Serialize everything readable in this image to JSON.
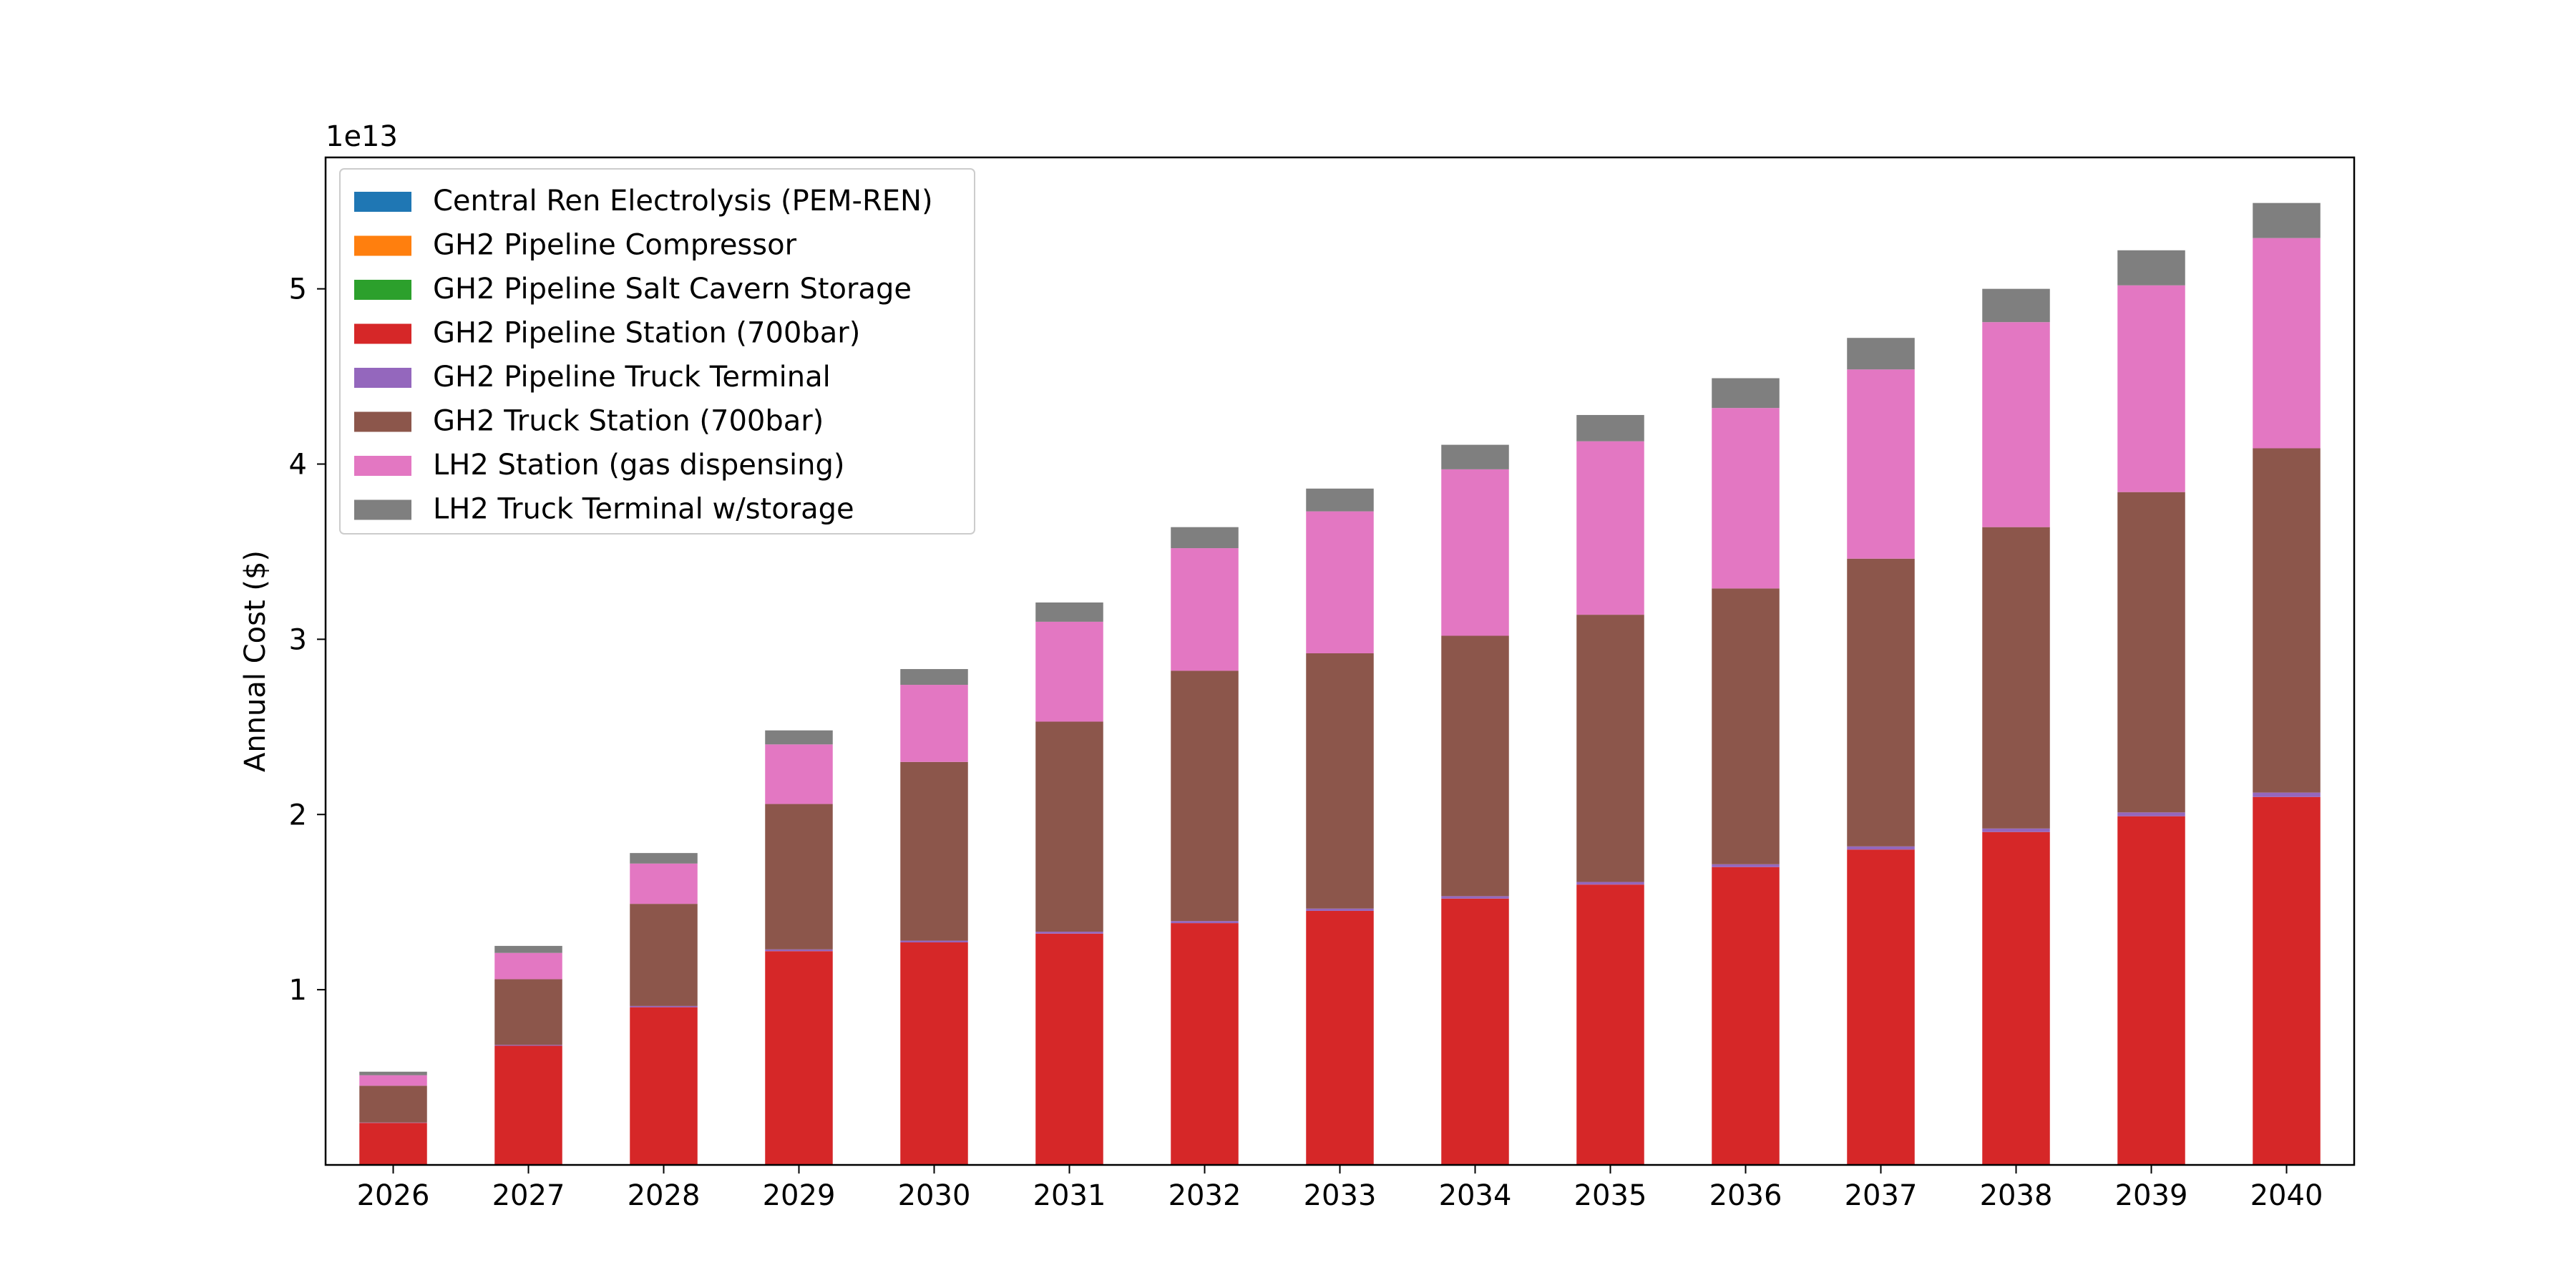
{
  "chart_data": {
    "type": "bar",
    "stacked": true,
    "categories": [
      "2026",
      "2027",
      "2028",
      "2029",
      "2030",
      "2031",
      "2032",
      "2033",
      "2034",
      "2035",
      "2036",
      "2037",
      "2038",
      "2039",
      "2040"
    ],
    "ylabel": "Annual Cost ($)",
    "xlabel": "",
    "y_scale_label": "1e13",
    "ylim": [
      0,
      5.75
    ],
    "yticks": [
      1,
      2,
      3,
      4,
      5
    ],
    "grid": false,
    "legend_position": "upper-left",
    "series": [
      {
        "name": "Central Ren Electrolysis (PEM-REN)",
        "color": "#1f77b4",
        "values": [
          0,
          0,
          0,
          0,
          0,
          0,
          0,
          0,
          0,
          0,
          0,
          0,
          0,
          0,
          0
        ]
      },
      {
        "name": "GH2 Pipeline Compressor",
        "color": "#ff7f0e",
        "values": [
          0,
          0,
          0,
          0,
          0,
          0,
          0,
          0,
          0,
          0,
          0,
          0,
          0,
          0,
          0
        ]
      },
      {
        "name": "GH2 Pipeline Salt Cavern Storage",
        "color": "#2ca02c",
        "values": [
          0,
          0,
          0,
          0,
          0,
          0,
          0,
          0,
          0,
          0,
          0,
          0,
          0,
          0,
          0
        ]
      },
      {
        "name": "GH2 Pipeline Station (700bar)",
        "color": "#d62728",
        "values": [
          0.24,
          0.68,
          0.9,
          1.22,
          1.27,
          1.32,
          1.38,
          1.45,
          1.52,
          1.6,
          1.7,
          1.8,
          1.9,
          1.99,
          2.1
        ]
      },
      {
        "name": "GH2 Pipeline Truck Terminal",
        "color": "#9467bd",
        "values": [
          0.002,
          0.005,
          0.007,
          0.01,
          0.01,
          0.011,
          0.012,
          0.013,
          0.014,
          0.015,
          0.016,
          0.018,
          0.02,
          0.022,
          0.025
        ]
      },
      {
        "name": "GH2 Truck Station (700bar)",
        "color": "#8c564b",
        "values": [
          0.21,
          0.375,
          0.583,
          0.83,
          1.02,
          1.199,
          1.428,
          1.457,
          1.486,
          1.525,
          1.574,
          1.642,
          1.72,
          1.828,
          1.965
        ]
      },
      {
        "name": "LH2 Station (gas dispensing)",
        "color": "#e377c2",
        "values": [
          0.06,
          0.15,
          0.23,
          0.34,
          0.44,
          0.57,
          0.7,
          0.81,
          0.95,
          0.99,
          1.03,
          1.08,
          1.17,
          1.18,
          1.2
        ]
      },
      {
        "name": "LH2 Truck Terminal w/storage",
        "color": "#7f7f7f",
        "values": [
          0.02,
          0.04,
          0.06,
          0.08,
          0.09,
          0.11,
          0.12,
          0.13,
          0.14,
          0.15,
          0.17,
          0.18,
          0.19,
          0.2,
          0.2
        ]
      }
    ]
  }
}
